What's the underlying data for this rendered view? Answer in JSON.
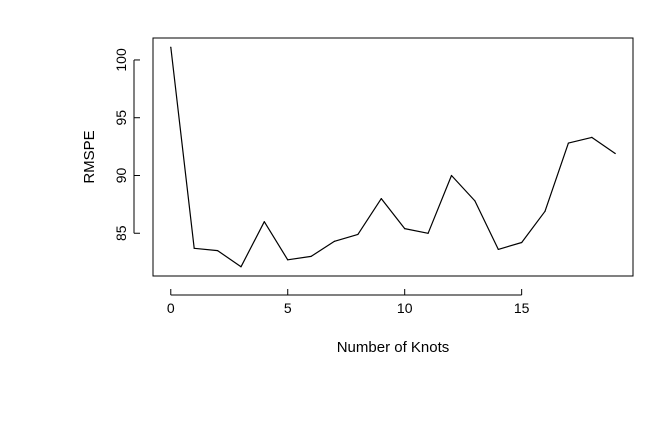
{
  "chart_data": {
    "type": "line",
    "title": "",
    "xlabel": "Number of Knots",
    "ylabel": "RMSPE",
    "xlim": [
      -0.76,
      19.76
    ],
    "ylim": [
      81.3,
      101.9
    ],
    "x_ticks": [
      0,
      5,
      10,
      15
    ],
    "y_ticks": [
      85,
      90,
      95,
      100
    ],
    "grid": false,
    "legend": "none",
    "series": [
      {
        "color": "#000000",
        "x": [
          0,
          1,
          2,
          3,
          4,
          5,
          6,
          7,
          8,
          9,
          10,
          11,
          12,
          13,
          14,
          15,
          16,
          17,
          18,
          19
        ],
        "y": [
          101.1,
          83.7,
          83.5,
          82.1,
          86.0,
          82.7,
          83.0,
          84.3,
          84.9,
          88.0,
          85.4,
          85.0,
          90.0,
          87.8,
          83.6,
          84.2,
          86.9,
          92.8,
          93.3,
          91.9
        ]
      }
    ]
  }
}
